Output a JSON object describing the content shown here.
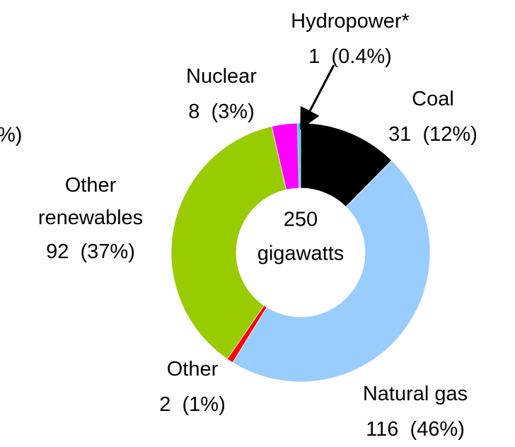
{
  "chart_data": {
    "type": "donut",
    "categories": [
      "Coal",
      "Natural gas",
      "Other",
      "Other renewables",
      "Nuclear",
      "Hydropower*"
    ],
    "values": [
      31,
      116,
      2,
      92,
      8,
      1
    ],
    "percent_labels": [
      "(12%)",
      "(46%)",
      "(1%)",
      "(37%)",
      "(3%)",
      "(0.4%)"
    ],
    "colors": [
      "#000000",
      "#99ccff",
      "#ff0000",
      "#99cc00",
      "#ff00ff",
      "#33ccff"
    ],
    "center_value": 250,
    "center_unit": "gigawatts",
    "annotations": [
      "%)"
    ]
  }
}
